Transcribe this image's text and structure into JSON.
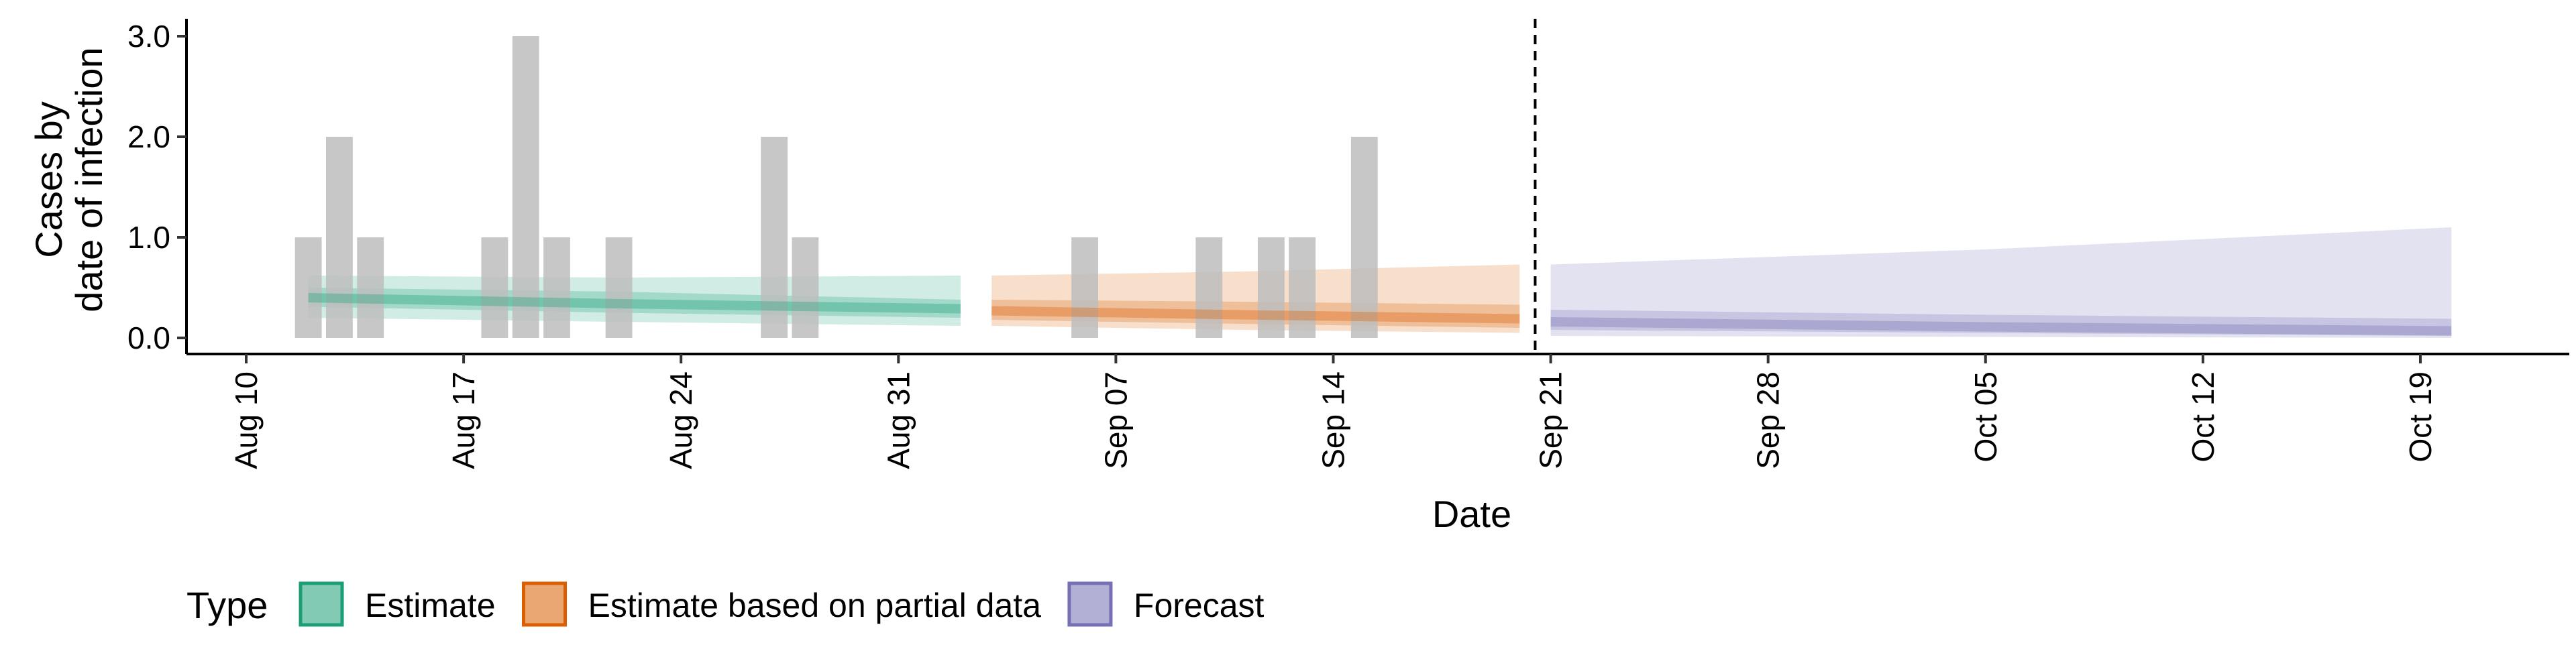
{
  "chart_data": {
    "type": "bar+area",
    "xlabel": "Date",
    "ylabel_lines": [
      "Cases by",
      "date of infection"
    ],
    "ylim": [
      0,
      3.15
    ],
    "xlim": [
      "2020-08-10",
      "2020-10-21"
    ],
    "y_ticks": [
      {
        "value": 0,
        "label": "0.0"
      },
      {
        "value": 1,
        "label": "1.0"
      },
      {
        "value": 2,
        "label": "2.0"
      },
      {
        "value": 3,
        "label": "3.0"
      }
    ],
    "x_ticks": [
      {
        "date": "2020-08-10",
        "label": "Aug 10"
      },
      {
        "date": "2020-08-17",
        "label": "Aug 17"
      },
      {
        "date": "2020-08-24",
        "label": "Aug 24"
      },
      {
        "date": "2020-08-31",
        "label": "Aug 31"
      },
      {
        "date": "2020-09-07",
        "label": "Sep 07"
      },
      {
        "date": "2020-09-14",
        "label": "Sep 14"
      },
      {
        "date": "2020-09-21",
        "label": "Sep 21"
      },
      {
        "date": "2020-09-28",
        "label": "Sep 28"
      },
      {
        "date": "2020-10-05",
        "label": "Oct 05"
      },
      {
        "date": "2020-10-12",
        "label": "Oct 12"
      },
      {
        "date": "2020-10-19",
        "label": "Oct 19"
      }
    ],
    "bars": {
      "color": "#bdbdbd",
      "dates": [
        "2020-08-12",
        "2020-08-13",
        "2020-08-14",
        "2020-08-18",
        "2020-08-19",
        "2020-08-20",
        "2020-08-22",
        "2020-08-27",
        "2020-08-28",
        "2020-09-06",
        "2020-09-10",
        "2020-09-12",
        "2020-09-13",
        "2020-09-15"
      ],
      "values": [
        1,
        2,
        1,
        1,
        3,
        1,
        1,
        2,
        1,
        1,
        1,
        1,
        1,
        2
      ]
    },
    "vline_date": "2020-09-20",
    "series": [
      {
        "name": "Estimate",
        "color": "#1b9e77",
        "dates": [
          "2020-08-12",
          "2020-08-22",
          "2020-09-02"
        ],
        "outer_lower": [
          0.2,
          0.16,
          0.12
        ],
        "outer_upper": [
          0.62,
          0.6,
          0.62
        ],
        "inner_lower": [
          0.31,
          0.25,
          0.2
        ],
        "inner_upper": [
          0.5,
          0.46,
          0.38
        ],
        "median": [
          0.4,
          0.34,
          0.29
        ]
      },
      {
        "name": "Estimate based on partial data",
        "color": "#d95f02",
        "dates": [
          "2020-09-03",
          "2020-09-11",
          "2020-09-20"
        ],
        "outer_lower": [
          0.12,
          0.08,
          0.05
        ],
        "outer_upper": [
          0.62,
          0.66,
          0.73
        ],
        "inner_lower": [
          0.18,
          0.14,
          0.1
        ],
        "inner_upper": [
          0.38,
          0.36,
          0.33
        ],
        "median": [
          0.27,
          0.23,
          0.19
        ]
      },
      {
        "name": "Forecast",
        "color": "#7570b3",
        "dates": [
          "2020-09-21",
          "2020-10-05",
          "2020-10-20"
        ],
        "outer_lower": [
          0.02,
          0.01,
          0.0
        ],
        "outer_upper": [
          0.73,
          0.88,
          1.1
        ],
        "inner_lower": [
          0.08,
          0.05,
          0.02
        ],
        "inner_upper": [
          0.28,
          0.23,
          0.19
        ],
        "median": [
          0.16,
          0.11,
          0.07
        ]
      }
    ],
    "legend": {
      "title": "Type",
      "position": "bottom",
      "items": [
        "Estimate",
        "Estimate based on partial data",
        "Forecast"
      ]
    },
    "grid": false
  }
}
